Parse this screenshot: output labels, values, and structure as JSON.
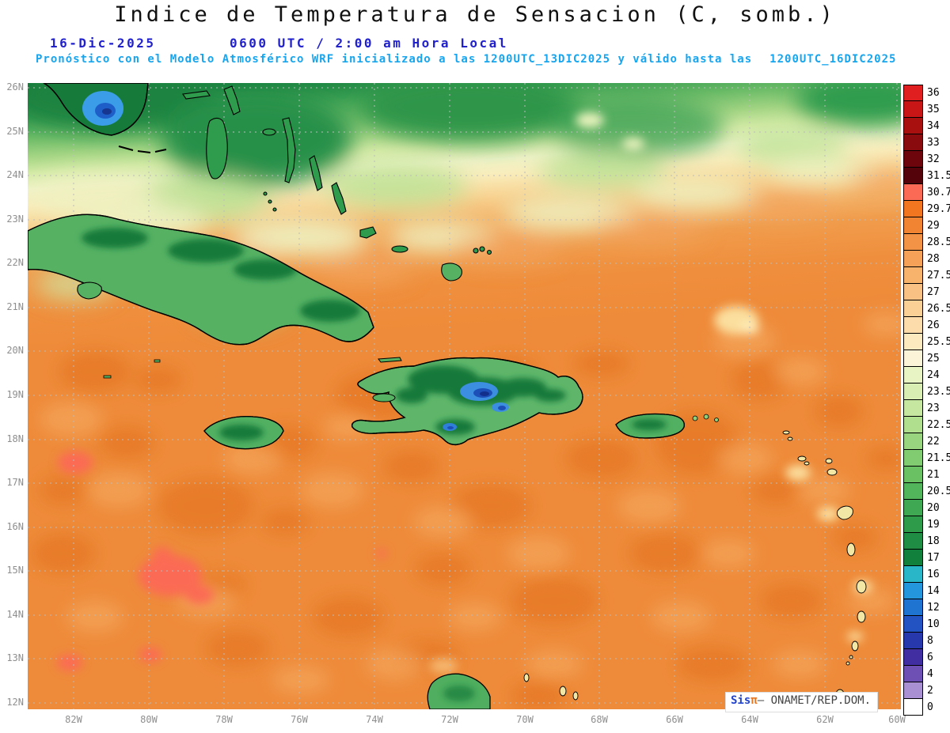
{
  "header": {
    "title": "Indice de Temperatura de Sensacion (C, somb.)",
    "date": "16-Dic-2025",
    "time": "0600 UTC / 2:00 am Hora Local",
    "note": "Pronóstico con el Modelo Atmosférico WRF inicializado a las 1200UTC_13DIC2025 y válido hasta las",
    "valid": "1200UTC_16DIC2025"
  },
  "map": {
    "lat_labels": [
      "26N",
      "25N",
      "24N",
      "23N",
      "22N",
      "21N",
      "20N",
      "19N",
      "18N",
      "17N",
      "16N",
      "15N",
      "14N",
      "13N",
      "12N"
    ],
    "lon_labels": [
      "82W",
      "80W",
      "78W",
      "76W",
      "74W",
      "72W",
      "70W",
      "68W",
      "66W",
      "64W",
      "62W",
      "60W"
    ]
  },
  "colorbar": {
    "labels": [
      "36",
      "35",
      "34",
      "33",
      "32",
      "31.5",
      "30.7",
      "29.7",
      "29",
      "28.5",
      "28",
      "27.5",
      "27",
      "26.5",
      "26",
      "25.5",
      "25",
      "24",
      "23.5",
      "23",
      "22.5",
      "22",
      "21.5",
      "21",
      "20.5",
      "20",
      "19",
      "18",
      "17",
      "16",
      "14",
      "12",
      "10",
      "8",
      "6",
      "4",
      "2",
      "0"
    ],
    "colors": [
      "#e02020",
      "#c81616",
      "#a81010",
      "#8a0b0e",
      "#6d060c",
      "#530309",
      "#fb6a55",
      "#f2751f",
      "#f08433",
      "#f29346",
      "#f5a258",
      "#f7b26c",
      "#f9c183",
      "#fbd096",
      "#fcdcaa",
      "#fde9c0",
      "#fcf4d8",
      "#e9f4c4",
      "#d8eeb2",
      "#c5e79f",
      "#b0df8e",
      "#99d57e",
      "#81cb70",
      "#69c163",
      "#52b55b",
      "#3ea852",
      "#2e9b4b",
      "#1f8d43",
      "#10803c",
      "#29b6c8",
      "#2497dc",
      "#1f74d2",
      "#2353c2",
      "#2737ac",
      "#412fa2",
      "#6e50b4",
      "#a890d2",
      "#ffffff"
    ]
  },
  "watermark": {
    "sis": "Sis",
    "pi": "π",
    "rest": "– ONAMET/REP.DOM."
  },
  "colors": {
    "header_blue": "#2222cc",
    "subtitle_cyan": "#17a5ee",
    "grid_gray": "#bbbbbb",
    "axis_label_gray": "#8f8f8f",
    "ocean_orange_base": "#ee8b3a"
  },
  "chart_data": {
    "type": "heatmap",
    "title": "Indice de Temperatura de Sensacion (C, somb.)",
    "units": "C",
    "x_ticks": [
      "82W",
      "80W",
      "78W",
      "76W",
      "74W",
      "72W",
      "70W",
      "68W",
      "66W",
      "64W",
      "62W",
      "60W"
    ],
    "y_ticks": [
      "12N",
      "13N",
      "14N",
      "15N",
      "16N",
      "17N",
      "18N",
      "19N",
      "20N",
      "21N",
      "22N",
      "23N",
      "24N",
      "25N",
      "26N"
    ],
    "x_range_deg_west": [
      83.2,
      60.0
    ],
    "y_range_deg_north": [
      12.0,
      26.2
    ],
    "grid": true,
    "legend_position": "right",
    "levels_c": [
      0,
      2,
      4,
      6,
      8,
      10,
      12,
      14,
      16,
      17,
      18,
      19,
      20,
      20.5,
      21,
      21.5,
      22,
      22.5,
      23,
      23.5,
      24,
      25,
      25.5,
      26,
      26.5,
      27,
      27.5,
      28,
      28.5,
      29,
      29.7,
      30.7,
      31.5,
      32,
      33,
      34,
      35,
      36
    ],
    "field_summary": [
      {
        "region": "Atlantico al norte de 24N",
        "approx_heat_index_c": "17-23"
      },
      {
        "region": "Banda de transicion 23N-24.5N (mas alta al este)",
        "approx_heat_index_c": "24-27"
      },
      {
        "region": "Mar Caribe y Atlantico tropical al sur de 22N",
        "approx_heat_index_c": "28.5-30"
      },
      {
        "region": "Parches calidos al suroeste (14N-16N, 79W-82W)",
        "approx_heat_index_c": "30.7"
      },
      {
        "region": "Sur de la Florida",
        "approx_heat_index_c": "14-18"
      },
      {
        "region": "Interior de Cuba",
        "approx_heat_index_c": "19-24"
      },
      {
        "region": "Cordillera Central de La Espanola (nucleos frios azules)",
        "approx_heat_index_c": "8-14"
      },
      {
        "region": "Interior de Jamaica y Puerto Rico",
        "approx_heat_index_c": "20-23"
      },
      {
        "region": "Antillas Menores",
        "approx_heat_index_c": "24-26"
      },
      {
        "region": "Bahamas",
        "approx_heat_index_c": "18-22"
      }
    ]
  }
}
